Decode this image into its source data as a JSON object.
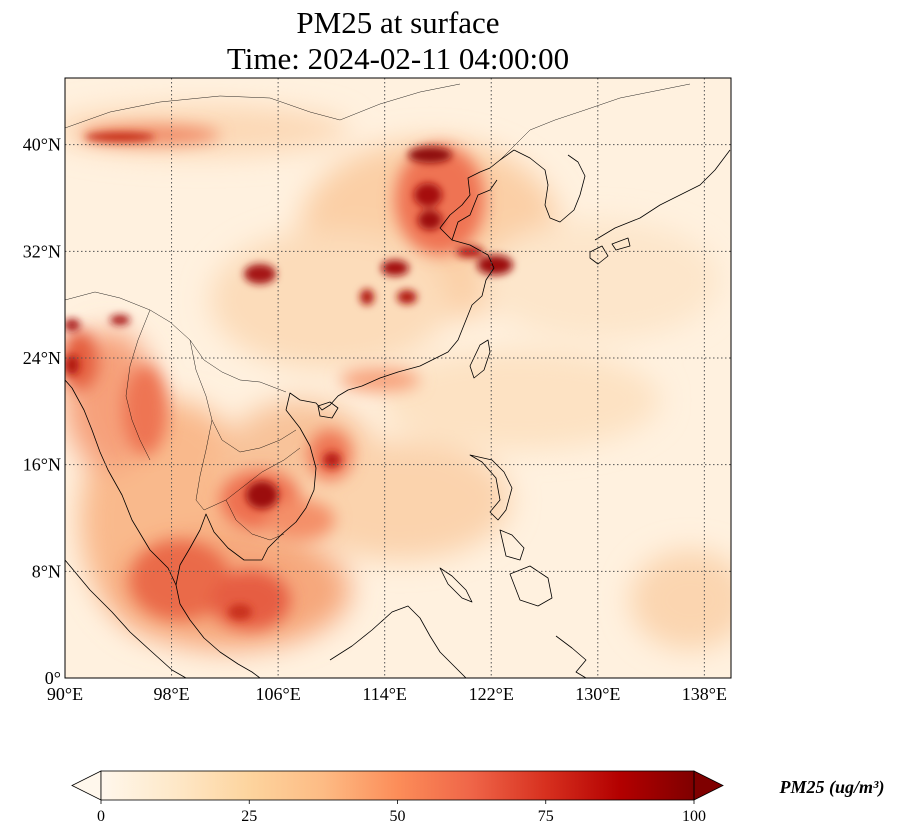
{
  "title": {
    "line1": "PM25 at surface",
    "line2": "Time: 2024-02-11 04:00:00"
  },
  "map": {
    "projection": "plate carree",
    "lon_range": [
      90,
      140
    ],
    "lat_range": [
      0,
      45
    ],
    "gridlines": "dotted",
    "lon_ticks": [
      {
        "value": 90,
        "label": "90°E"
      },
      {
        "value": 98,
        "label": "98°E"
      },
      {
        "value": 106,
        "label": "106°E"
      },
      {
        "value": 114,
        "label": "114°E"
      },
      {
        "value": 122,
        "label": "122°E"
      },
      {
        "value": 130,
        "label": "130°E"
      },
      {
        "value": 138,
        "label": "138°E"
      }
    ],
    "lat_ticks": [
      {
        "value": 0,
        "label": "0°"
      },
      {
        "value": 8,
        "label": "8°N"
      },
      {
        "value": 16,
        "label": "16°N"
      },
      {
        "value": 24,
        "label": "24°N"
      },
      {
        "value": 32,
        "label": "32°N"
      },
      {
        "value": 40,
        "label": "40°N"
      }
    ]
  },
  "colorbar": {
    "title": "PM25 (ug/m³)",
    "colormap": "OrRd",
    "range": [
      0,
      100
    ],
    "extend": "both",
    "ticks": [
      {
        "value": 0,
        "label": "0"
      },
      {
        "value": 25,
        "label": "25"
      },
      {
        "value": 50,
        "label": "50"
      },
      {
        "value": 75,
        "label": "75"
      },
      {
        "value": 100,
        "label": "100"
      }
    ],
    "colors": [
      "#fff7ec",
      "#fee8c8",
      "#fdd49e",
      "#fdbb84",
      "#fc8d59",
      "#ef6548",
      "#d7301f",
      "#b30000",
      "#7f0000"
    ]
  }
}
